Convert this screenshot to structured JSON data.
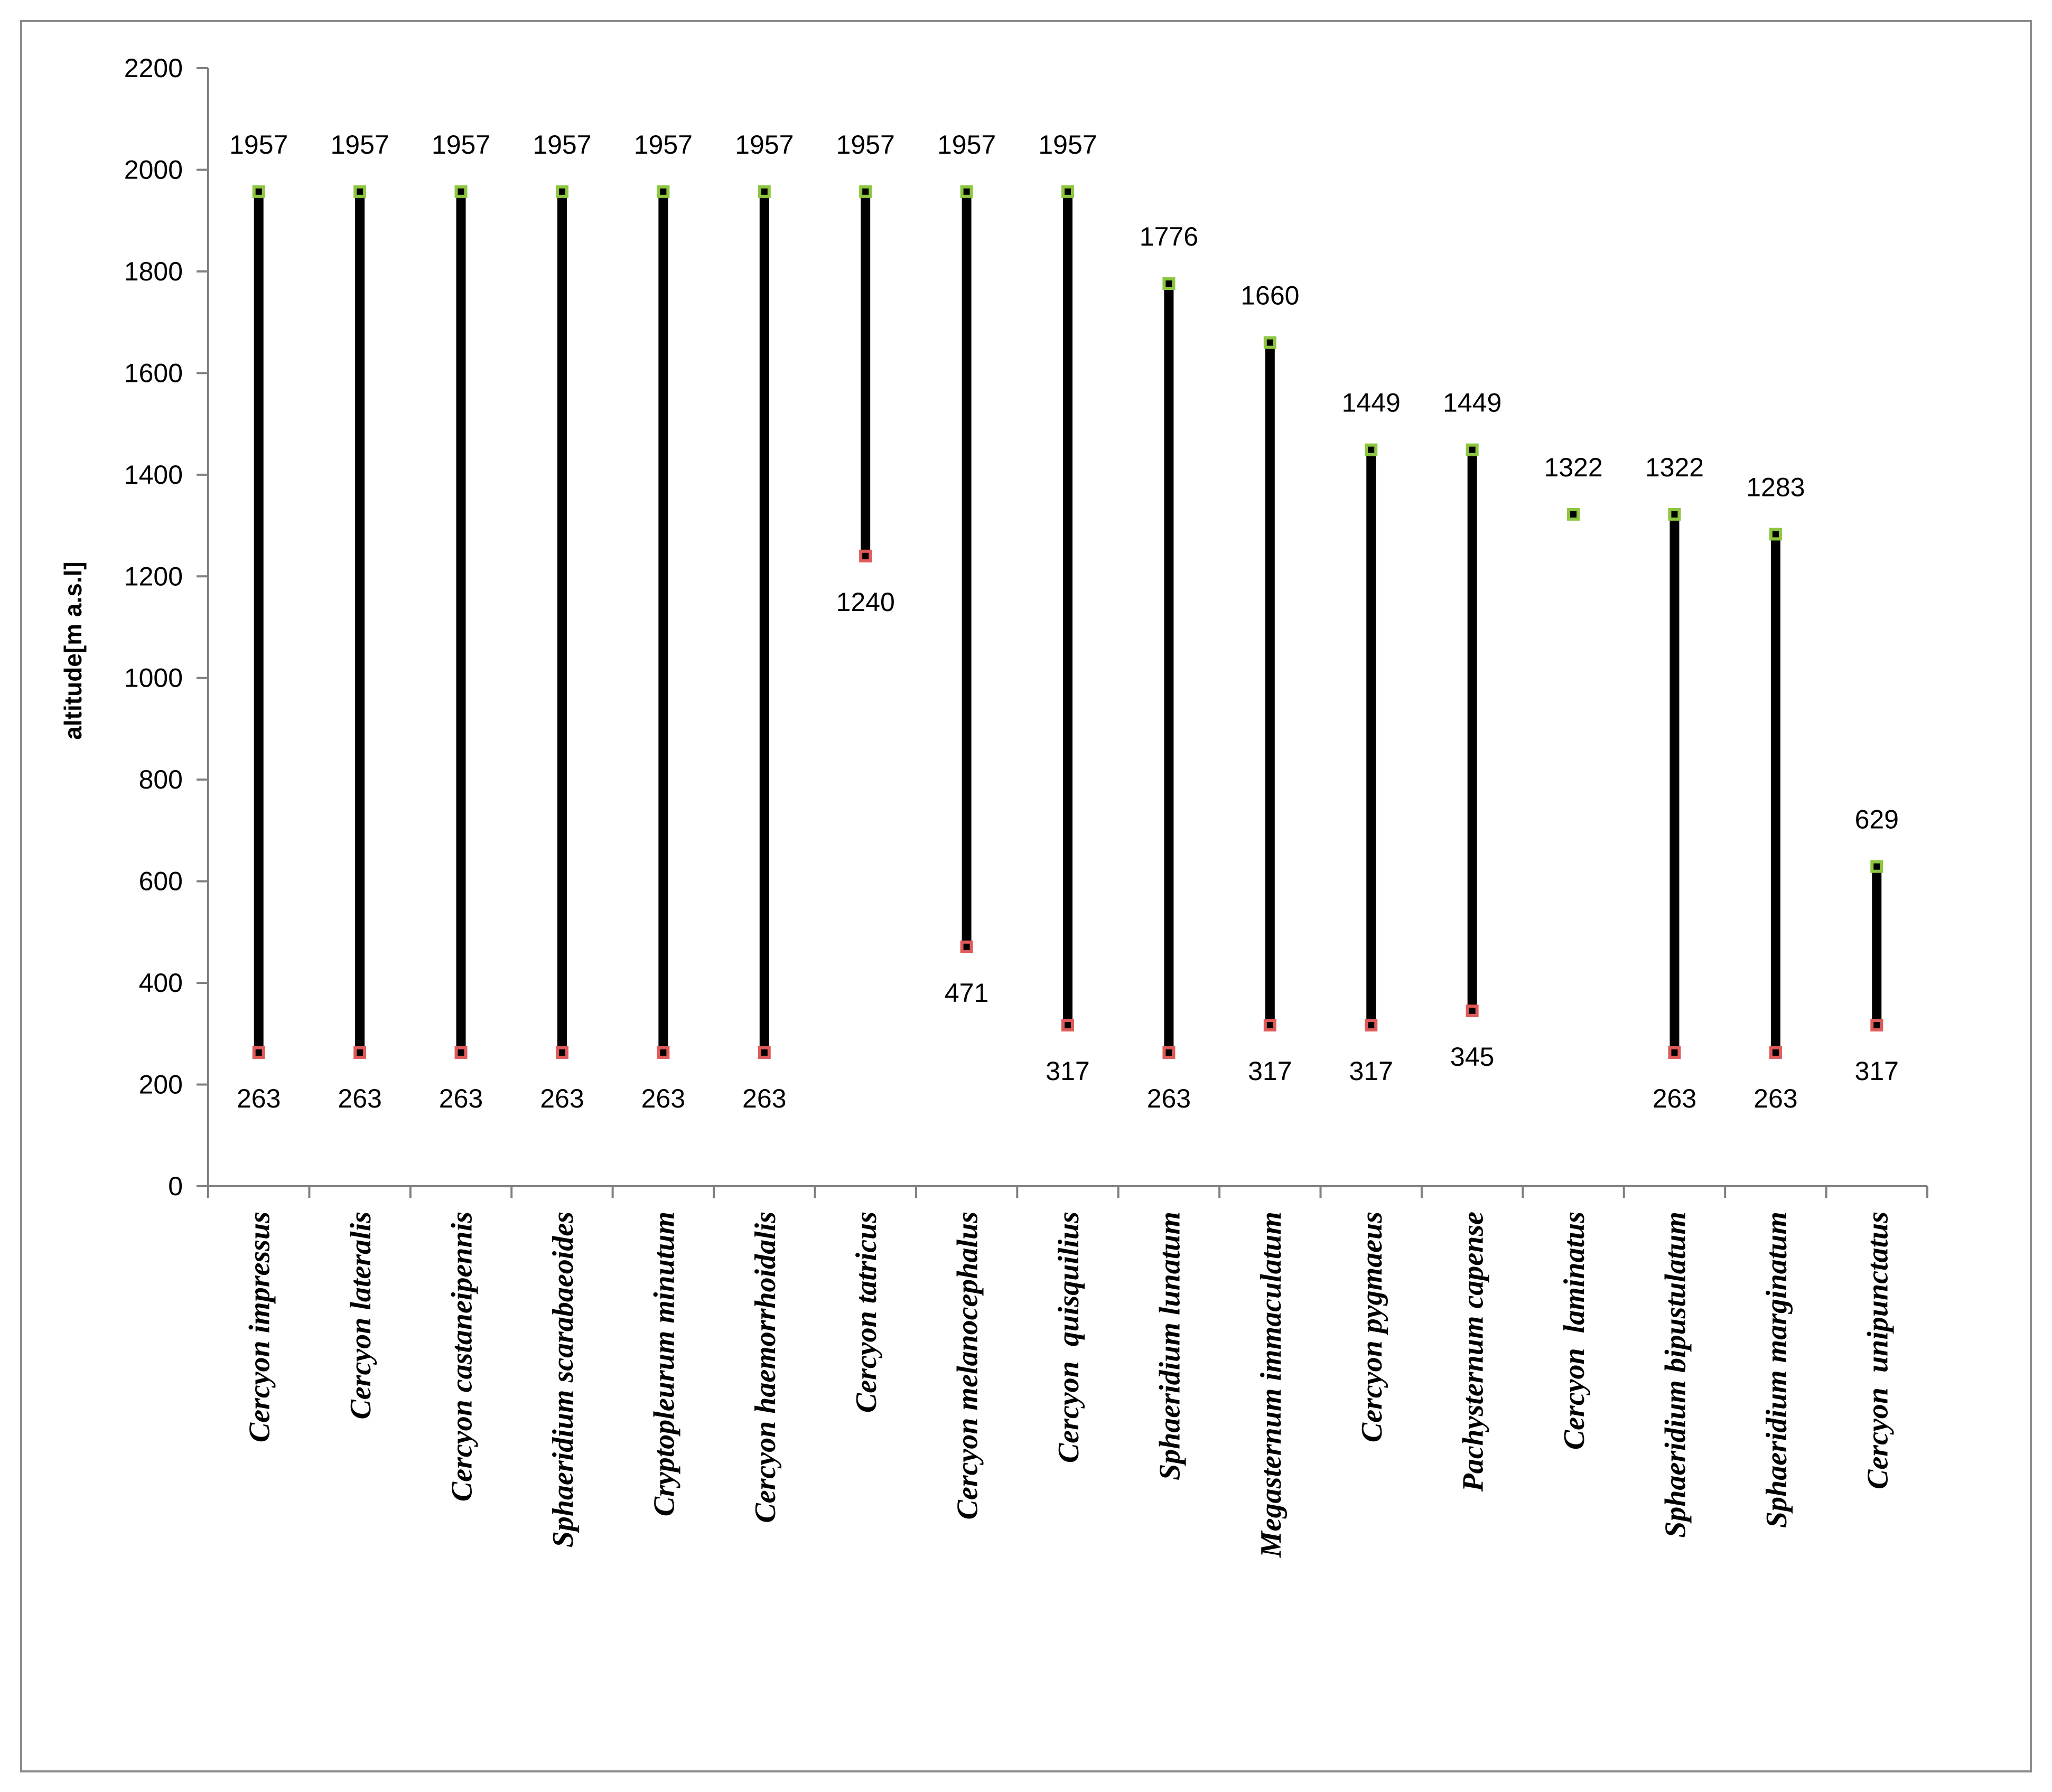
{
  "chart_data": {
    "type": "range",
    "title": "",
    "xlabel": "",
    "ylabel": "altitude[m a.s.l]",
    "ylim": [
      0,
      2200
    ],
    "yticks": [
      0,
      200,
      400,
      600,
      800,
      1000,
      1200,
      1400,
      1600,
      1800,
      2000,
      2200
    ],
    "grid": false,
    "legend": "none",
    "categories": [
      "Cercyon impressus",
      "Cercyon lateralis",
      "Cercyon castaneipennis",
      "Sphaeridium scarabaeoides",
      "Cryptopleurum minutum",
      "Cercyon haemorrhoidalis",
      "Cercyon tatricus",
      "Cercyon melanocephalus",
      "Cercyon  quisquilius",
      "Sphaeridium lunatum",
      "Megasternum immaculatum",
      "Cercyon pygmaeus",
      "Pachysternum capense",
      "Cercyon  laminatus",
      "Sphaeridium bipustulatum",
      "Sphaeridium marginatum",
      "Cercyon  unipunctatus"
    ],
    "series": [
      {
        "values": [
          1957,
          1957,
          1957,
          1957,
          1957,
          1957,
          1957,
          1957,
          1957,
          1776,
          1660,
          1449,
          1449,
          1322,
          1322,
          1283,
          629
        ]
      },
      {
        "values": [
          263,
          263,
          263,
          263,
          263,
          263,
          1240,
          471,
          317,
          263,
          317,
          317,
          345,
          null,
          263,
          263,
          317
        ]
      }
    ],
    "colors": {
      "range_line": "#000000",
      "max_marker": "#8dc63f",
      "min_marker": "#e05a5a",
      "marker_center": "#000000",
      "axis": "#808080"
    }
  }
}
